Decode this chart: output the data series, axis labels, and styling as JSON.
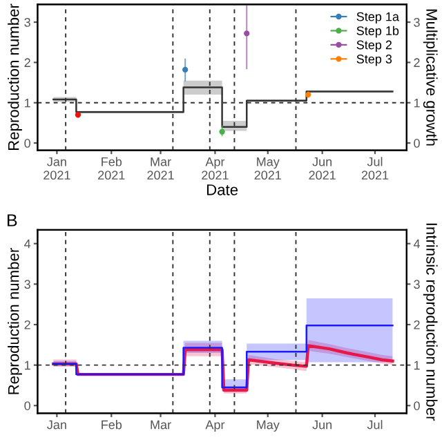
{
  "chart_data": [
    {
      "type": "step",
      "xlabel": "Date",
      "ylabel": "Reproduction number",
      "y2label": "Multiplicative growth",
      "xlim": [
        "2020-12-21",
        "2021-07-19"
      ],
      "xticks": [
        {
          "value": "2021-01-01",
          "label": "Jan\n2021"
        },
        {
          "value": "2021-02-01",
          "label": "Feb\n2021"
        },
        {
          "value": "2021-03-01",
          "label": "Mar\n2021"
        },
        {
          "value": "2021-04-01",
          "label": "Apr\n2021"
        },
        {
          "value": "2021-05-01",
          "label": "May\n2021"
        },
        {
          "value": "2021-06-01",
          "label": "Jun\n2021"
        },
        {
          "value": "2021-07-01",
          "label": "Jul\n2021"
        }
      ],
      "ylim": [
        -0.18,
        3.44
      ],
      "yticks": [
        0,
        1,
        2,
        3
      ],
      "y2lim": [
        -0.18,
        3.44
      ],
      "y2ticks": [
        0,
        1,
        2,
        3
      ],
      "grid": false,
      "legend": "top right",
      "series": [
        {
          "color": "#333333",
          "x": [
            "2020-12-30",
            "2021-01-12",
            "2021-03-14",
            "2021-04-05",
            "2021-04-19",
            "2021-05-23",
            "2021-07-11"
          ],
          "values": [
            1.08,
            0.77,
            1.38,
            0.4,
            1.05,
            1.28,
            1.28
          ],
          "lower": [
            1.02,
            0.74,
            1.2,
            0.3,
            1.02,
            1.25,
            1.25
          ],
          "upper": [
            1.14,
            0.8,
            1.55,
            0.55,
            1.08,
            1.31,
            1.31
          ]
        },
        {
          "type": "scatter",
          "marker": "circle",
          "color": "#ee1111",
          "x": [
            "2021-01-13"
          ],
          "values": [
            0.7
          ],
          "errors": [
            [
              0.65,
              0.76
            ]
          ]
        },
        {
          "type": "scatter",
          "marker": "circle",
          "name": "Step 1a",
          "color": "#377eb8",
          "x": [
            "2021-03-15"
          ],
          "values": [
            1.82
          ],
          "errors": [
            [
              1.55,
              2.08
            ]
          ]
        },
        {
          "type": "scatter",
          "marker": "circle",
          "name": "Step 1b",
          "color": "#4daf4a",
          "x": [
            "2021-04-05"
          ],
          "values": [
            0.28
          ],
          "errors": [
            [
              0.18,
              0.42
            ]
          ]
        },
        {
          "type": "scatter",
          "marker": "circle",
          "name": "Step 2",
          "color": "#984ea3",
          "x": [
            "2021-04-19"
          ],
          "values": [
            2.72
          ],
          "errors": [
            [
              1.85,
              3.4
            ]
          ]
        },
        {
          "type": "scatter",
          "marker": "circle",
          "name": "Step 3",
          "color": "#ff7f00",
          "x": [
            "2021-05-24"
          ],
          "values": [
            1.2
          ],
          "errors": [
            [
              1.14,
              1.26
            ]
          ]
        }
      ],
      "ref_lines": [
        {
          "axis": "y",
          "value": 1,
          "line_style": "dashed"
        },
        {
          "axis": "x",
          "value": "2021-01-06",
          "line_style": "dashed"
        },
        {
          "axis": "x",
          "value": "2021-03-08",
          "line_style": "dashed"
        },
        {
          "axis": "x",
          "value": "2021-03-29",
          "line_style": "dashed"
        },
        {
          "axis": "x",
          "value": "2021-04-12",
          "line_style": "dashed"
        },
        {
          "axis": "x",
          "value": "2021-05-17",
          "line_style": "dashed"
        }
      ]
    },
    {
      "type": "line",
      "ylabel": "Reproduction number",
      "y2label": "Intrinsic reproduction number",
      "annotations": [
        "B"
      ],
      "xlim": [
        "2020-12-21",
        "2021-07-19"
      ],
      "xticks": [
        {
          "value": "2021-01-01",
          "label": "Jan"
        },
        {
          "value": "2021-02-01",
          "label": "Feb"
        },
        {
          "value": "2021-03-01",
          "label": "Mar"
        },
        {
          "value": "2021-04-01",
          "label": "Apr"
        },
        {
          "value": "2021-05-01",
          "label": "May"
        },
        {
          "value": "2021-06-01",
          "label": "Jun"
        },
        {
          "value": "2021-07-01",
          "label": "Jul"
        }
      ],
      "ylim": [
        -0.19,
        4.34
      ],
      "yticks": [
        0,
        1,
        2,
        3,
        4
      ],
      "y2lim": [
        -0.19,
        4.34
      ],
      "y2ticks": [
        0,
        1,
        2,
        3,
        4
      ],
      "grid": false,
      "series": [
        {
          "color": "#e8174a",
          "x": [
            "2020-12-30",
            "2021-01-12",
            "2021-01-13",
            "2021-03-14",
            "2021-03-15",
            "2021-04-05",
            "2021-04-06",
            "2021-04-19",
            "2021-04-20",
            "2021-05-05",
            "2021-05-15",
            "2021-05-23",
            "2021-05-24",
            "2021-06-05",
            "2021-06-15",
            "2021-06-27",
            "2021-07-05",
            "2021-07-11"
          ],
          "values": [
            1.03,
            1.03,
            0.77,
            0.77,
            1.38,
            1.38,
            0.38,
            0.38,
            1.13,
            1.05,
            1.0,
            0.97,
            1.48,
            1.4,
            1.3,
            1.2,
            1.13,
            1.1
          ],
          "lower": [
            0.97,
            0.97,
            0.75,
            0.75,
            1.22,
            1.22,
            0.3,
            0.3,
            1.02,
            0.95,
            0.9,
            0.85,
            1.35,
            1.28,
            1.2,
            1.1,
            1.04,
            1.01
          ],
          "upper": [
            1.14,
            1.14,
            0.79,
            0.79,
            1.55,
            1.55,
            0.48,
            0.48,
            1.25,
            1.15,
            1.1,
            1.08,
            1.62,
            1.52,
            1.42,
            1.32,
            1.25,
            1.22
          ]
        },
        {
          "type": "step",
          "color": "#1a1aff",
          "x": [
            "2020-12-30",
            "2021-01-12",
            "2021-03-14",
            "2021-04-05",
            "2021-04-19",
            "2021-05-23",
            "2021-07-11"
          ],
          "values": [
            1.03,
            0.77,
            1.43,
            0.45,
            1.33,
            1.98,
            1.98
          ],
          "lower": [
            0.97,
            0.75,
            1.3,
            0.35,
            1.12,
            1.07,
            1.07
          ],
          "upper": [
            1.1,
            0.79,
            1.6,
            0.65,
            1.53,
            2.65,
            2.65
          ]
        }
      ],
      "ref_lines": [
        {
          "axis": "y",
          "value": 1,
          "line_style": "dashed"
        },
        {
          "axis": "x",
          "value": "2021-01-06",
          "line_style": "dashed"
        },
        {
          "axis": "x",
          "value": "2021-03-08",
          "line_style": "dashed"
        },
        {
          "axis": "x",
          "value": "2021-03-29",
          "line_style": "dashed"
        },
        {
          "axis": "x",
          "value": "2021-04-12",
          "line_style": "dashed"
        },
        {
          "axis": "x",
          "value": "2021-05-17",
          "line_style": "dashed"
        }
      ]
    }
  ]
}
